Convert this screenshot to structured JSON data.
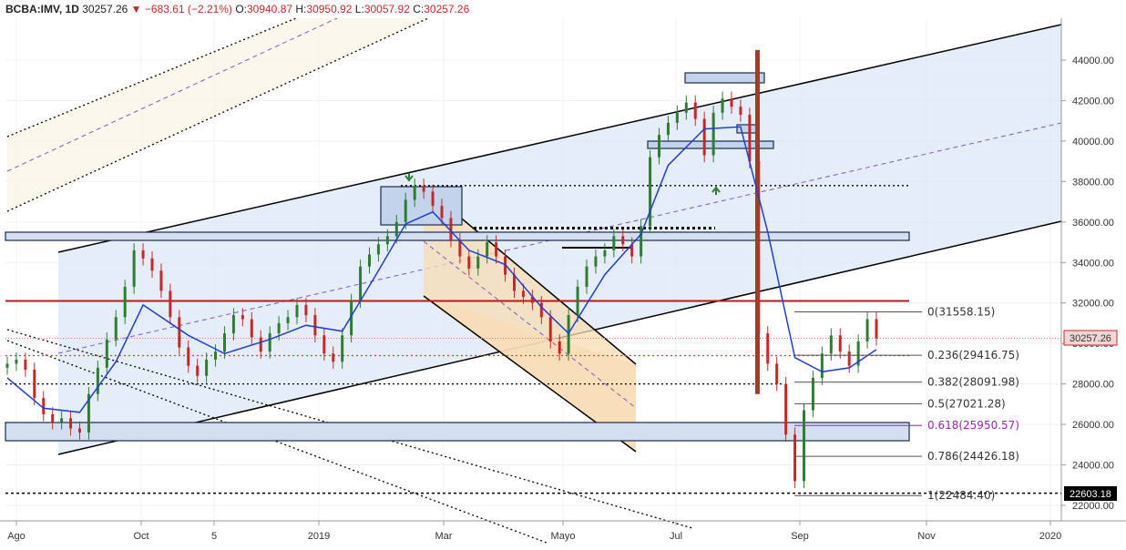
{
  "header": {
    "symbol": "BCBA:IMV, 1D",
    "last": "30257.26",
    "change_arrow": "▼",
    "change": "−683.61 (−2.21%)",
    "open_label": "O:",
    "open": "30940.87",
    "high_label": "H:",
    "high": "30950.92",
    "low_label": "L:",
    "low": "30057.92",
    "close_label": "C:",
    "close": "30257.26"
  },
  "price_badges": {
    "last": "30257.26",
    "horizontal_line": "22603.18"
  },
  "colors": {
    "up": "#2e7d32",
    "down": "#c62828",
    "ma": "#1e3fd6",
    "channel_fill": "#dbe7f5",
    "falling_channel_fill": "#f8dcb4",
    "resistance": "#b71c1c",
    "fib_618": "#9c27b0"
  },
  "chart_data": {
    "type": "candlestick",
    "title": "BCBA:IMV, 1D",
    "x_tick_labels": [
      "Ago",
      "Oct",
      "5",
      "2019",
      "Mar",
      "Mayo",
      "Jul",
      "Sep",
      "Nov",
      "2020"
    ],
    "y_tick_labels": [
      "44000.00",
      "42000.00",
      "40000.00",
      "38000.00",
      "36000.00",
      "34000.00",
      "32000.00",
      "30000.00",
      "28000.00",
      "26000.00",
      "24000.00",
      "22000.00"
    ],
    "ylim": [
      21400,
      45800
    ],
    "series": [
      {
        "name": "IMV",
        "kind": "candles",
        "points": [
          [
            0,
            29000
          ],
          [
            3,
            29200
          ],
          [
            6,
            28700
          ],
          [
            9,
            27300
          ],
          [
            12,
            26500
          ],
          [
            15,
            26100
          ],
          [
            18,
            26300
          ],
          [
            21,
            25800
          ],
          [
            24,
            25600
          ],
          [
            27,
            27500
          ],
          [
            30,
            28800
          ],
          [
            33,
            30200
          ],
          [
            36,
            31300
          ],
          [
            39,
            32800
          ],
          [
            42,
            34600
          ],
          [
            45,
            34200
          ],
          [
            48,
            33600
          ],
          [
            51,
            32600
          ],
          [
            54,
            31300
          ],
          [
            57,
            29800
          ],
          [
            60,
            28900
          ],
          [
            63,
            28400
          ],
          [
            66,
            29200
          ],
          [
            69,
            29600
          ],
          [
            72,
            30500
          ],
          [
            75,
            31400
          ],
          [
            78,
            31200
          ],
          [
            81,
            30300
          ],
          [
            84,
            29600
          ],
          [
            87,
            30500
          ],
          [
            90,
            31000
          ],
          [
            93,
            31300
          ],
          [
            96,
            31900
          ],
          [
            99,
            31400
          ],
          [
            102,
            30400
          ],
          [
            105,
            29500
          ],
          [
            108,
            29100
          ],
          [
            111,
            30400
          ],
          [
            114,
            32100
          ],
          [
            117,
            33800
          ],
          [
            120,
            34400
          ],
          [
            123,
            34900
          ],
          [
            126,
            35300
          ],
          [
            129,
            36000
          ],
          [
            132,
            37100
          ],
          [
            135,
            37800
          ],
          [
            138,
            37500
          ],
          [
            141,
            36800
          ],
          [
            144,
            36200
          ],
          [
            147,
            35100
          ],
          [
            150,
            34300
          ],
          [
            153,
            33700
          ],
          [
            156,
            34300
          ],
          [
            159,
            35000
          ],
          [
            162,
            34300
          ],
          [
            165,
            33400
          ],
          [
            168,
            32600
          ],
          [
            171,
            32300
          ],
          [
            174,
            32000
          ],
          [
            177,
            31300
          ],
          [
            180,
            30100
          ],
          [
            183,
            29500
          ],
          [
            186,
            31400
          ],
          [
            189,
            32800
          ],
          [
            192,
            33800
          ],
          [
            195,
            34300
          ],
          [
            198,
            34600
          ],
          [
            201,
            35300
          ],
          [
            204,
            34900
          ],
          [
            207,
            34300
          ],
          [
            210,
            35800
          ],
          [
            213,
            39200
          ],
          [
            216,
            40300
          ],
          [
            219,
            40900
          ],
          [
            222,
            41400
          ],
          [
            225,
            41900
          ],
          [
            228,
            41100
          ],
          [
            231,
            39300
          ],
          [
            234,
            41400
          ],
          [
            237,
            42100
          ],
          [
            240,
            41700
          ],
          [
            243,
            41300
          ],
          [
            246,
            39000
          ],
          [
            249,
            30500
          ],
          [
            252,
            29000
          ],
          [
            255,
            28000
          ],
          [
            258,
            25500
          ],
          [
            261,
            23200
          ],
          [
            264,
            26700
          ],
          [
            267,
            28300
          ],
          [
            270,
            29500
          ],
          [
            273,
            30400
          ],
          [
            276,
            29600
          ],
          [
            279,
            28900
          ],
          [
            282,
            30100
          ],
          [
            285,
            31200
          ],
          [
            288,
            30257
          ]
        ]
      },
      {
        "name": "EMA",
        "kind": "line",
        "points": [
          [
            0,
            28300
          ],
          [
            12,
            26800
          ],
          [
            24,
            26600
          ],
          [
            36,
            29100
          ],
          [
            45,
            31900
          ],
          [
            60,
            30400
          ],
          [
            72,
            29500
          ],
          [
            87,
            30200
          ],
          [
            99,
            30900
          ],
          [
            111,
            30600
          ],
          [
            123,
            33600
          ],
          [
            132,
            35900
          ],
          [
            141,
            36500
          ],
          [
            153,
            34600
          ],
          [
            165,
            33900
          ],
          [
            177,
            31800
          ],
          [
            186,
            30500
          ],
          [
            198,
            33400
          ],
          [
            210,
            35400
          ],
          [
            219,
            38800
          ],
          [
            231,
            40600
          ],
          [
            243,
            40700
          ],
          [
            252,
            35500
          ],
          [
            261,
            29300
          ],
          [
            270,
            28600
          ],
          [
            279,
            28800
          ],
          [
            288,
            29700
          ]
        ]
      }
    ],
    "fibonacci": [
      {
        "label": "0",
        "value": "31558.15"
      },
      {
        "label": "0.236",
        "value": "29416.75"
      },
      {
        "label": "0.382",
        "value": "28091.98"
      },
      {
        "label": "0.5",
        "value": "27021.28"
      },
      {
        "label": "0.618",
        "value": "25950.57"
      },
      {
        "label": "0.786",
        "value": "24426.18"
      },
      {
        "label": "1",
        "value": "22484.40"
      }
    ],
    "horizontal_levels": [
      32100,
      29400,
      28000,
      22603.18
    ],
    "grid": true,
    "legend": "none"
  }
}
